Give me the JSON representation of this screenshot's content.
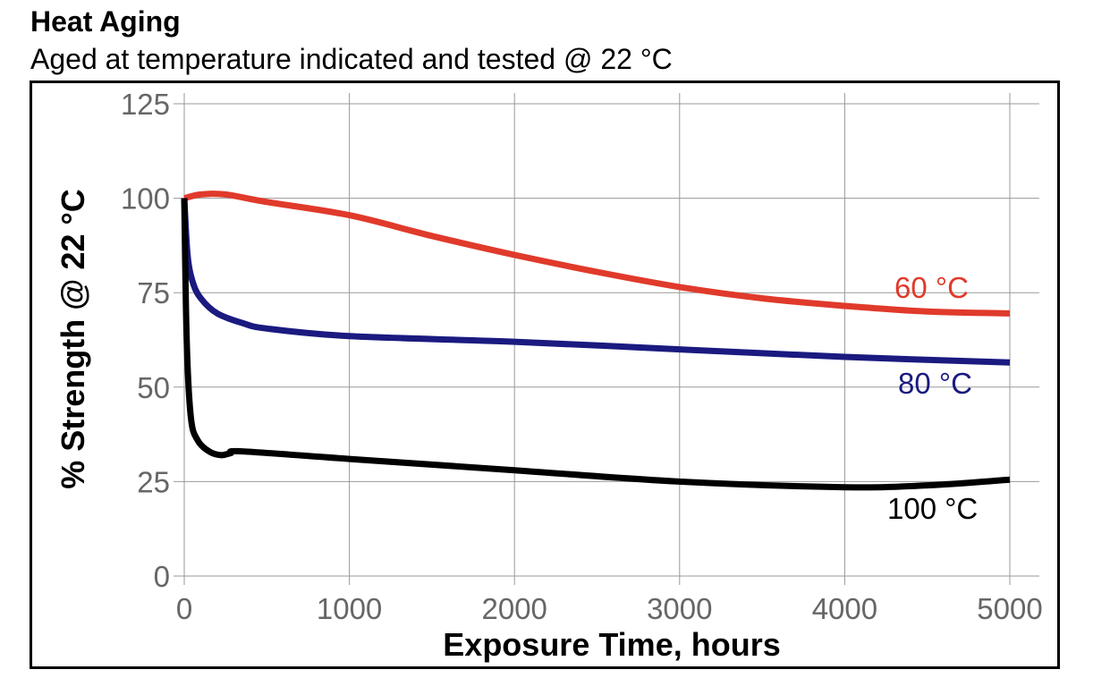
{
  "chart_data": {
    "type": "line",
    "title": "Heat Aging",
    "subtitle": "Aged at temperature indicated and tested @ 22 °C",
    "xlabel": "Exposure Time, hours",
    "ylabel": "% Strength @ 22 °C",
    "xlim": [
      0,
      5000
    ],
    "ylim": [
      0,
      125
    ],
    "x_ticks": [
      "0",
      "1000",
      "2000",
      "3000",
      "4000",
      "5000"
    ],
    "y_ticks": [
      "0",
      "25",
      "50",
      "75",
      "100",
      "125"
    ],
    "grid": true,
    "series": [
      {
        "name": "60 °C",
        "color": "#e03a2b",
        "x": [
          0,
          100,
          250,
          500,
          1000,
          1500,
          2000,
          2500,
          3000,
          3500,
          4000,
          4500,
          5000
        ],
        "y": [
          100,
          101,
          101,
          99,
          95.5,
          90,
          85,
          80.5,
          76.5,
          73.5,
          71.5,
          70,
          69.5
        ]
      },
      {
        "name": "80 °C",
        "color": "#1a1a80",
        "x": [
          0,
          20,
          50,
          100,
          200,
          350,
          500,
          1000,
          2000,
          3000,
          4000,
          5000
        ],
        "y": [
          100,
          85,
          78,
          73.5,
          69.5,
          67,
          65.5,
          63.5,
          62,
          60,
          58,
          56.5
        ]
      },
      {
        "name": "100 °C",
        "color": "#000000",
        "x": [
          0,
          15,
          40,
          80,
          150,
          220,
          280,
          350,
          1000,
          2000,
          3000,
          4000,
          4500,
          5000
        ],
        "y": [
          100,
          62,
          42,
          36,
          33,
          32,
          32.5,
          33,
          31,
          28,
          25,
          23.5,
          24,
          25.5
        ]
      }
    ]
  }
}
